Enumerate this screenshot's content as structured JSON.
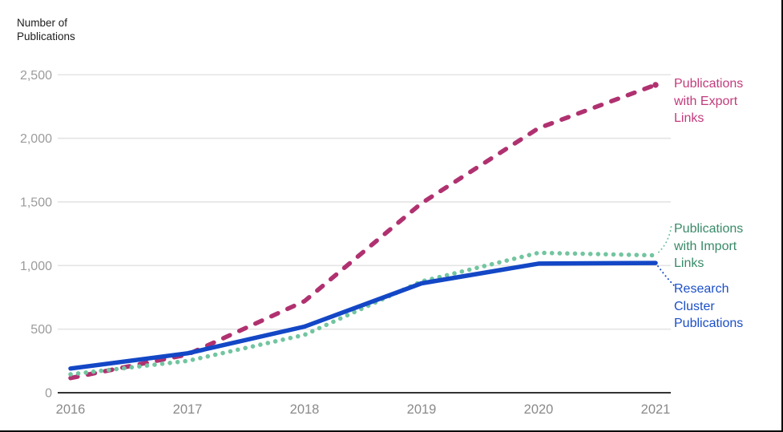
{
  "chart_data": {
    "type": "line",
    "title": "Number of Publications",
    "x": [
      2016,
      2017,
      2018,
      2019,
      2020,
      2021
    ],
    "x_tick_labels": [
      "2016",
      "2017",
      "2018",
      "2019",
      "2020",
      "2021"
    ],
    "y_ticks": [
      0,
      500,
      1000,
      1500,
      2000,
      2500
    ],
    "y_tick_labels": [
      "0",
      "500",
      "1,000",
      "1,500",
      "2,000",
      "2,500"
    ],
    "ylim": [
      0,
      2500
    ],
    "grid": "horizontal-only",
    "legend_position": "right-edge-annotations",
    "series": [
      {
        "name": "Publications with Export Links",
        "style": "dashed",
        "line_color": "#b03170",
        "label_color": "#c23b7c",
        "values": [
          115,
          300,
          720,
          1490,
          2080,
          2420
        ],
        "end_marker": "dot"
      },
      {
        "name": "Publications with Import Links",
        "style": "dotted",
        "line_color": "#72c5a0",
        "label_color": "#388a68",
        "values": [
          145,
          250,
          455,
          875,
          1100,
          1080
        ],
        "end_marker": "none"
      },
      {
        "name": "Research Cluster Publications",
        "style": "solid",
        "line_color": "#1347c6",
        "label_color": "#1b4fc8",
        "values": [
          190,
          310,
          520,
          860,
          1015,
          1020
        ],
        "end_marker": "none"
      }
    ],
    "axis_colors": {
      "gridline": "#e4e4e4",
      "axis_line": "#333333",
      "y_tick_text": "#9c9c9c",
      "x_tick_text": "#8a8a8a",
      "title_text": "#1d1d1d"
    }
  }
}
